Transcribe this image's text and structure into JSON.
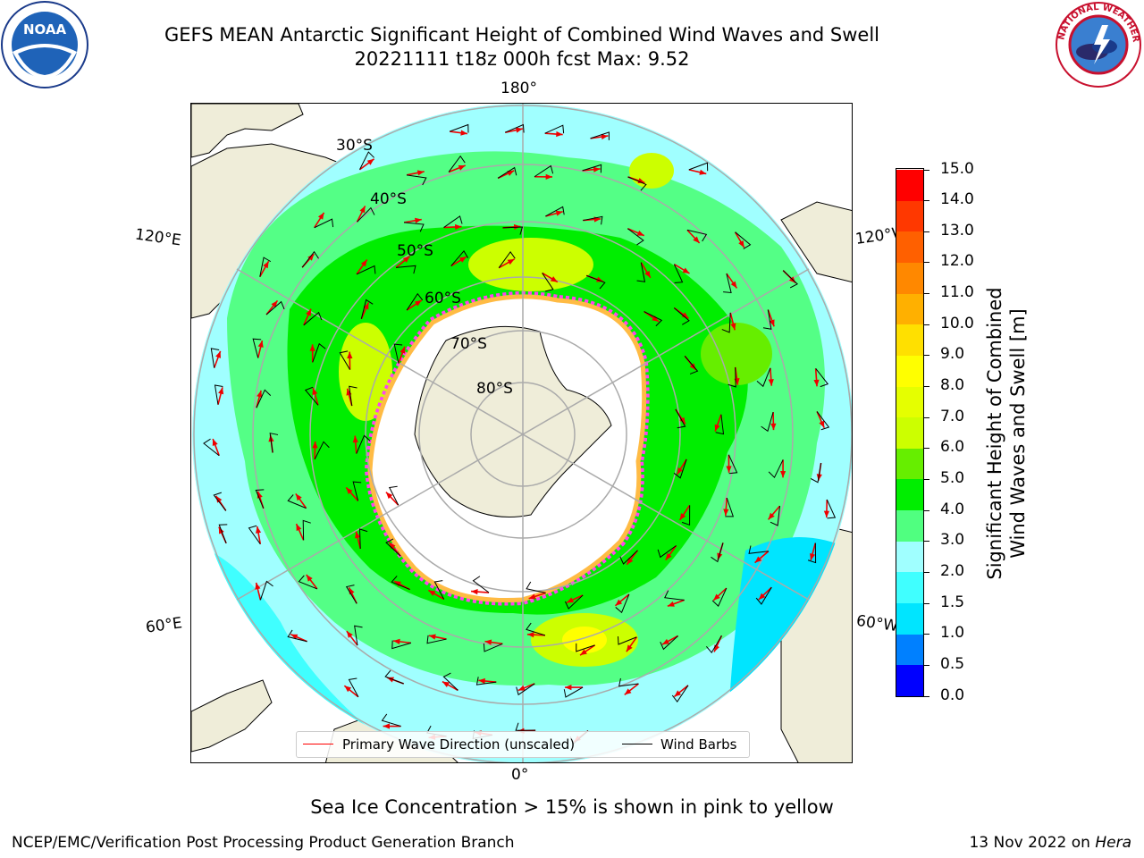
{
  "header": {
    "title_line1": "GEFS MEAN Antarctic Significant Height of Combined Wind Waves and Swell",
    "title_line2": "20221111 t18z 000h fcst   Max: 9.52"
  },
  "logos": {
    "left": "noaa-logo",
    "left_text": "NOAA",
    "right": "national-weather-service-logo",
    "right_text": "NATIONAL WEATHER SERVICE"
  },
  "map": {
    "projection": "south-polar-stereographic",
    "longitude_labels": {
      "top": "180°",
      "bottom": "0°",
      "upper_left": "120°E",
      "upper_right": "120°W",
      "lower_left": "60°E",
      "lower_right": "60°W"
    },
    "latitude_labels": [
      "30°S",
      "40°S",
      "50°S",
      "60°S",
      "70°S",
      "80°S"
    ],
    "colors": {
      "land": "#efedd9",
      "ice_pink": "#ff44ee",
      "ice_orange": "#ffbb44",
      "arrow": "#ee0000",
      "barb": "#000000"
    }
  },
  "legend": {
    "primary_wave": "Primary Wave Direction (unscaled)",
    "wind_barbs": "Wind Barbs",
    "primary_wave_color": "#ff0000",
    "wind_barbs_color": "#000000"
  },
  "colorbar": {
    "label_line1": "Significant Height of Combined",
    "label_line2": "Wind Waves and Swell [m]",
    "ticks": [
      "0.0",
      "0.5",
      "1.0",
      "1.5",
      "2.0",
      "3.0",
      "4.0",
      "5.0",
      "6.0",
      "7.0",
      "8.0",
      "9.0",
      "10.0",
      "11.0",
      "12.0",
      "13.0",
      "14.0",
      "15.0"
    ],
    "colors": [
      "#0000ff",
      "#0080ff",
      "#00e5ff",
      "#40ffff",
      "#a0ffff",
      "#50ff80",
      "#00ee00",
      "#66ee00",
      "#ccff00",
      "#e5ff00",
      "#ffff00",
      "#ffe000",
      "#ffb000",
      "#ff8800",
      "#ff6000",
      "#ff3800",
      "#ff0000"
    ]
  },
  "caption": "Sea Ice Concentration > 15% is shown in pink to yellow",
  "footer": {
    "left": "NCEP/EMC/Verification Post Processing Product Generation Branch",
    "right_date": "13 Nov 2022 on",
    "right_host": "Hera"
  }
}
